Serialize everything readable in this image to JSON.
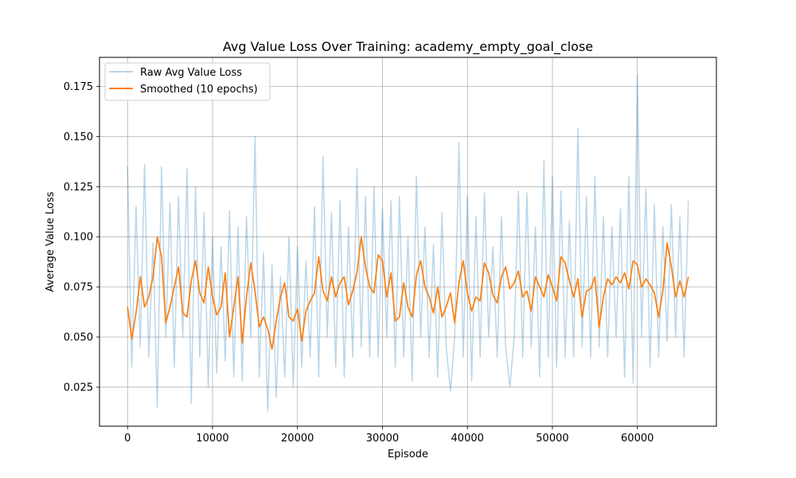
{
  "chart_data": {
    "type": "line",
    "title": "Avg Value Loss Over Training: academy_empty_goal_close",
    "xlabel": "Episode",
    "ylabel": "Average Value Loss",
    "xlim": [
      -3300,
      69300
    ],
    "ylim": [
      0.0055,
      0.1895
    ],
    "xticks": [
      0,
      10000,
      20000,
      30000,
      40000,
      50000,
      60000
    ],
    "xtick_labels": [
      "0",
      "10000",
      "20000",
      "30000",
      "40000",
      "50000",
      "60000"
    ],
    "yticks": [
      0.025,
      0.05,
      0.075,
      0.1,
      0.125,
      0.15,
      0.175
    ],
    "ytick_labels": [
      "0.025",
      "0.050",
      "0.075",
      "0.100",
      "0.125",
      "0.150",
      "0.175"
    ],
    "grid": true,
    "legend_position": "upper-left",
    "series": [
      {
        "name": "Raw Avg Value Loss",
        "color": "#1f77b4",
        "opacity": 0.3,
        "x": [
          0,
          500,
          1000,
          1500,
          2000,
          2500,
          3000,
          3500,
          4000,
          4500,
          5000,
          5500,
          6000,
          6500,
          7000,
          7500,
          8000,
          8500,
          9000,
          9500,
          10000,
          10500,
          11000,
          11500,
          12000,
          12500,
          13000,
          13500,
          14000,
          14500,
          15000,
          15500,
          16000,
          16500,
          17000,
          17500,
          18000,
          18500,
          19000,
          19500,
          20000,
          20500,
          21000,
          21500,
          22000,
          22500,
          23000,
          23500,
          24000,
          24500,
          25000,
          25500,
          26000,
          26500,
          27000,
          27500,
          28000,
          28500,
          29000,
          29500,
          30000,
          30500,
          31000,
          31500,
          32000,
          32500,
          33000,
          33500,
          34000,
          34500,
          35000,
          35500,
          36000,
          36500,
          37000,
          37500,
          38000,
          38500,
          39000,
          39500,
          40000,
          40500,
          41000,
          41500,
          42000,
          42500,
          43000,
          43500,
          44000,
          44500,
          45000,
          45500,
          46000,
          46500,
          47000,
          47500,
          48000,
          48500,
          49000,
          49500,
          50000,
          50500,
          51000,
          51500,
          52000,
          52500,
          53000,
          53500,
          54000,
          54500,
          55000,
          55500,
          56000,
          56500,
          57000,
          57500,
          58000,
          58500,
          59000,
          59500,
          60000,
          60500,
          61000,
          61500,
          62000,
          62500,
          63000,
          63500,
          64000,
          64500,
          65000,
          65500,
          66000
        ],
        "values": [
          0.135,
          0.035,
          0.115,
          0.045,
          0.136,
          0.04,
          0.097,
          0.015,
          0.135,
          0.05,
          0.117,
          0.035,
          0.12,
          0.05,
          0.134,
          0.017,
          0.125,
          0.04,
          0.112,
          0.025,
          0.1,
          0.032,
          0.095,
          0.038,
          0.113,
          0.03,
          0.105,
          0.028,
          0.11,
          0.05,
          0.15,
          0.03,
          0.092,
          0.013,
          0.086,
          0.02,
          0.08,
          0.03,
          0.1,
          0.025,
          0.095,
          0.035,
          0.088,
          0.04,
          0.115,
          0.03,
          0.14,
          0.05,
          0.112,
          0.035,
          0.118,
          0.03,
          0.105,
          0.04,
          0.134,
          0.045,
          0.12,
          0.04,
          0.125,
          0.04,
          0.114,
          0.05,
          0.118,
          0.035,
          0.12,
          0.04,
          0.1,
          0.028,
          0.13,
          0.05,
          0.105,
          0.04,
          0.096,
          0.03,
          0.112,
          0.045,
          0.023,
          0.05,
          0.147,
          0.04,
          0.12,
          0.028,
          0.11,
          0.04,
          0.122,
          0.05,
          0.095,
          0.04,
          0.11,
          0.045,
          0.025,
          0.05,
          0.123,
          0.04,
          0.122,
          0.045,
          0.105,
          0.03,
          0.138,
          0.04,
          0.13,
          0.035,
          0.123,
          0.04,
          0.108,
          0.04,
          0.154,
          0.045,
          0.12,
          0.04,
          0.13,
          0.045,
          0.11,
          0.04,
          0.105,
          0.05,
          0.114,
          0.03,
          0.13,
          0.027,
          0.181,
          0.05,
          0.124,
          0.035,
          0.116,
          0.04,
          0.105,
          0.048,
          0.116,
          0.05,
          0.11,
          0.04,
          0.118
        ]
      },
      {
        "name": "Smoothed (10 epochs)",
        "color": "#ff7f0e",
        "opacity": 1,
        "x": [
          0,
          500,
          1000,
          1500,
          2000,
          2500,
          3000,
          3500,
          4000,
          4500,
          5000,
          5500,
          6000,
          6500,
          7000,
          7500,
          8000,
          8500,
          9000,
          9500,
          10000,
          10500,
          11000,
          11500,
          12000,
          12500,
          13000,
          13500,
          14000,
          14500,
          15000,
          15500,
          16000,
          16500,
          17000,
          17500,
          18000,
          18500,
          19000,
          19500,
          20000,
          20500,
          21000,
          21500,
          22000,
          22500,
          23000,
          23500,
          24000,
          24500,
          25000,
          25500,
          26000,
          26500,
          27000,
          27500,
          28000,
          28500,
          29000,
          29500,
          30000,
          30500,
          31000,
          31500,
          32000,
          32500,
          33000,
          33500,
          34000,
          34500,
          35000,
          35500,
          36000,
          36500,
          37000,
          37500,
          38000,
          38500,
          39000,
          39500,
          40000,
          40500,
          41000,
          41500,
          42000,
          42500,
          43000,
          43500,
          44000,
          44500,
          45000,
          45500,
          46000,
          46500,
          47000,
          47500,
          48000,
          48500,
          49000,
          49500,
          50000,
          50500,
          51000,
          51500,
          52000,
          52500,
          53000,
          53500,
          54000,
          54500,
          55000,
          55500,
          56000,
          56500,
          57000,
          57500,
          58000,
          58500,
          59000,
          59500,
          60000,
          60500,
          61000,
          61500,
          62000,
          62500,
          63000,
          63500,
          64000,
          64500,
          65000,
          65500,
          66000
        ],
        "values": [
          0.065,
          0.049,
          0.062,
          0.08,
          0.065,
          0.07,
          0.08,
          0.1,
          0.09,
          0.057,
          0.065,
          0.075,
          0.085,
          0.062,
          0.06,
          0.078,
          0.088,
          0.072,
          0.067,
          0.085,
          0.07,
          0.061,
          0.065,
          0.082,
          0.05,
          0.065,
          0.08,
          0.047,
          0.07,
          0.087,
          0.073,
          0.055,
          0.06,
          0.054,
          0.044,
          0.058,
          0.07,
          0.077,
          0.06,
          0.058,
          0.064,
          0.048,
          0.063,
          0.068,
          0.072,
          0.09,
          0.073,
          0.068,
          0.08,
          0.07,
          0.077,
          0.08,
          0.066,
          0.073,
          0.082,
          0.1,
          0.085,
          0.075,
          0.072,
          0.091,
          0.088,
          0.07,
          0.082,
          0.058,
          0.06,
          0.077,
          0.065,
          0.06,
          0.081,
          0.088,
          0.075,
          0.07,
          0.062,
          0.075,
          0.06,
          0.065,
          0.072,
          0.057,
          0.077,
          0.088,
          0.072,
          0.063,
          0.07,
          0.068,
          0.087,
          0.082,
          0.071,
          0.067,
          0.08,
          0.085,
          0.074,
          0.077,
          0.083,
          0.07,
          0.073,
          0.063,
          0.08,
          0.075,
          0.07,
          0.081,
          0.075,
          0.068,
          0.09,
          0.087,
          0.078,
          0.07,
          0.079,
          0.06,
          0.073,
          0.074,
          0.08,
          0.055,
          0.07,
          0.079,
          0.076,
          0.08,
          0.077,
          0.082,
          0.074,
          0.088,
          0.086,
          0.075,
          0.079,
          0.076,
          0.072,
          0.06,
          0.073,
          0.097,
          0.085,
          0.07,
          0.078,
          0.07,
          0.08
        ]
      }
    ]
  }
}
